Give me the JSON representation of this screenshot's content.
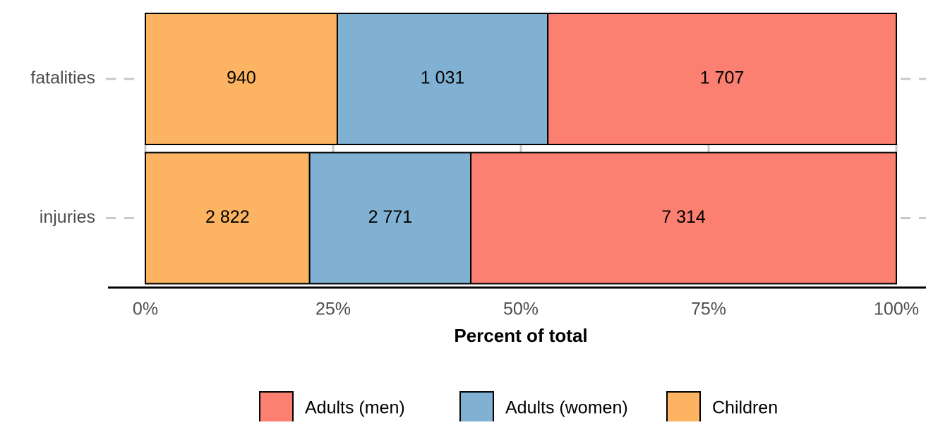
{
  "chart_data": {
    "type": "bar",
    "orientation": "horizontal",
    "stacked": "percent",
    "xlabel": "Percent of total",
    "categories": [
      "fatalities",
      "injuries"
    ],
    "series": [
      {
        "name": "Adults (men)",
        "color": "#fb8072",
        "values": [
          1707,
          7314
        ],
        "value_labels": [
          "1 707",
          "7 314"
        ]
      },
      {
        "name": "Adults (women)",
        "color": "#80b1d3",
        "values": [
          1031,
          2771
        ],
        "value_labels": [
          "1 031",
          "2 771"
        ]
      },
      {
        "name": "Children",
        "color": "#fdb462",
        "values": [
          940,
          2822
        ],
        "value_labels": [
          "940",
          "2 822"
        ]
      }
    ],
    "xlim": [
      0,
      100
    ],
    "xticks": [
      {
        "value": 0,
        "label": "0%"
      },
      {
        "value": 25,
        "label": "25%"
      },
      {
        "value": 50,
        "label": "50%"
      },
      {
        "value": 75,
        "label": "75%"
      },
      {
        "value": 100,
        "label": "100%"
      }
    ],
    "legend": "bottom"
  }
}
